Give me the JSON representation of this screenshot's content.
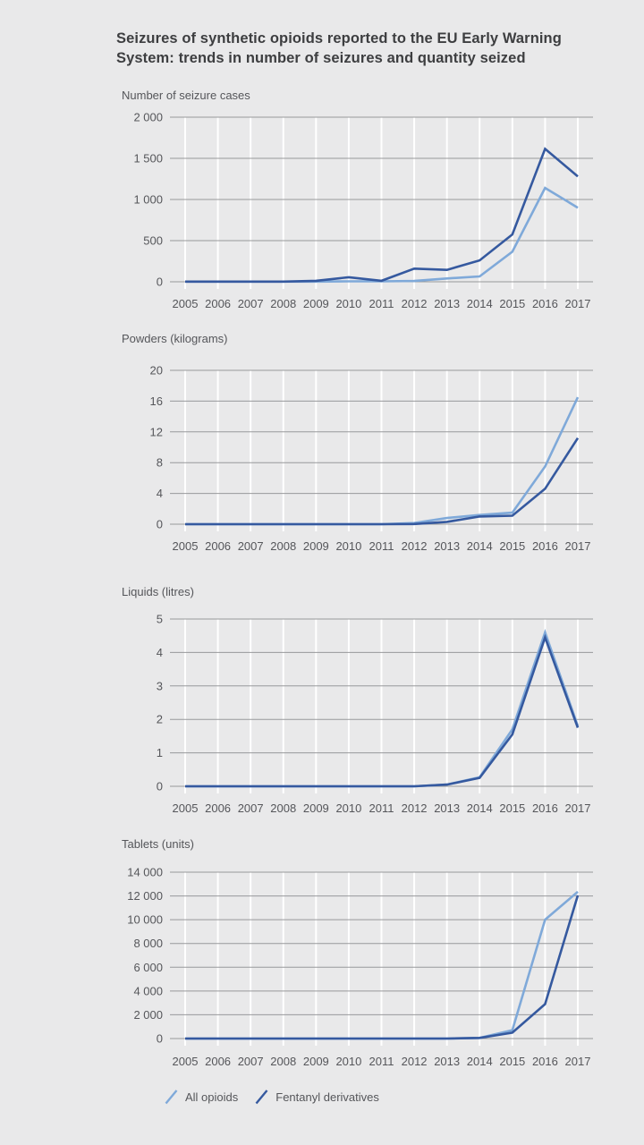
{
  "page": {
    "title": "Seizures of synthetic opioids reported to the EU Early Warning\nSystem: trends in number of seizures and quantity seized",
    "background": "#e9e9ea"
  },
  "colors": {
    "all_opioids": "#7fa9d9",
    "fentanyl": "#35599f",
    "gridline": "#98999b",
    "vertical_gridline": "#ffffff",
    "axis_text": "#55565a",
    "title_text": "#3d3e40"
  },
  "legend": {
    "items": [
      {
        "label": "All opioids",
        "series": "all_opioids"
      },
      {
        "label": "Fentanyl derivatives",
        "series": "fentanyl"
      }
    ]
  },
  "chart_data": [
    {
      "type": "line",
      "title": "Number of seizure cases",
      "x": [
        2005,
        2006,
        2007,
        2008,
        2009,
        2010,
        2011,
        2012,
        2013,
        2014,
        2015,
        2016,
        2017
      ],
      "ylim": [
        0,
        2000
      ],
      "grid": true,
      "yticks": [
        {
          "value": 2000,
          "label": "2 000"
        },
        {
          "value": 1500,
          "label": "1 500"
        },
        {
          "value": 1000,
          "label": "1 000"
        },
        {
          "value": 500,
          "label": "500"
        },
        {
          "value": 0,
          "label": "0"
        }
      ],
      "series": [
        {
          "name": "All opioids",
          "color": "all_opioids",
          "values": [
            2,
            2,
            2,
            2,
            2,
            5,
            5,
            10,
            40,
            65,
            365,
            1140,
            900
          ]
        },
        {
          "name": "Fentanyl derivatives",
          "color": "fentanyl",
          "values": [
            2,
            2,
            2,
            2,
            12,
            55,
            12,
            160,
            145,
            260,
            575,
            1615,
            1280
          ]
        }
      ]
    },
    {
      "type": "line",
      "title": "Powders (kilograms)",
      "x": [
        2005,
        2006,
        2007,
        2008,
        2009,
        2010,
        2011,
        2012,
        2013,
        2014,
        2015,
        2016,
        2017
      ],
      "ylim": [
        0,
        20
      ],
      "grid": true,
      "yticks": [
        {
          "value": 20,
          "label": "20"
        },
        {
          "value": 16,
          "label": "16"
        },
        {
          "value": 12,
          "label": "12"
        },
        {
          "value": 8,
          "label": "8"
        },
        {
          "value": 4,
          "label": "4"
        },
        {
          "value": 0,
          "label": "0"
        }
      ],
      "series": [
        {
          "name": "All opioids",
          "color": "all_opioids",
          "values": [
            0,
            0,
            0,
            0,
            0,
            0,
            0,
            0.15,
            0.8,
            1.2,
            1.5,
            7.5,
            16.5
          ]
        },
        {
          "name": "Fentanyl derivatives",
          "color": "fentanyl",
          "values": [
            0,
            0,
            0,
            0,
            0,
            0,
            0,
            0.02,
            0.3,
            1.0,
            1.1,
            4.6,
            11.2
          ]
        }
      ]
    },
    {
      "type": "line",
      "title": "Liquids (litres)",
      "x": [
        2005,
        2006,
        2007,
        2008,
        2009,
        2010,
        2011,
        2012,
        2013,
        2014,
        2015,
        2016,
        2017
      ],
      "ylim": [
        0,
        5
      ],
      "grid": true,
      "yticks": [
        {
          "value": 5,
          "label": "5"
        },
        {
          "value": 4,
          "label": "4"
        },
        {
          "value": 3,
          "label": "3"
        },
        {
          "value": 2,
          "label": "2"
        },
        {
          "value": 1,
          "label": "1"
        },
        {
          "value": 0,
          "label": "0"
        }
      ],
      "series": [
        {
          "name": "All opioids",
          "color": "all_opioids",
          "values": [
            0,
            0,
            0,
            0,
            0,
            0,
            0,
            0,
            0.05,
            0.27,
            1.7,
            4.6,
            1.8
          ]
        },
        {
          "name": "Fentanyl derivatives",
          "color": "fentanyl",
          "values": [
            0,
            0,
            0,
            0,
            0,
            0,
            0,
            0,
            0.05,
            0.25,
            1.55,
            4.45,
            1.75
          ]
        }
      ]
    },
    {
      "type": "line",
      "title": "Tablets (units)",
      "x": [
        2005,
        2006,
        2007,
        2008,
        2009,
        2010,
        2011,
        2012,
        2013,
        2014,
        2015,
        2016,
        2017
      ],
      "ylim": [
        0,
        14000
      ],
      "grid": true,
      "yticks": [
        {
          "value": 14000,
          "label": "14 000"
        },
        {
          "value": 12000,
          "label": "12 000"
        },
        {
          "value": 10000,
          "label": "10 000"
        },
        {
          "value": 8000,
          "label": "8 000"
        },
        {
          "value": 6000,
          "label": "6 000"
        },
        {
          "value": 4000,
          "label": "4 000"
        },
        {
          "value": 2000,
          "label": "2 000"
        },
        {
          "value": 0,
          "label": "0"
        }
      ],
      "series": [
        {
          "name": "All opioids",
          "color": "all_opioids",
          "values": [
            0,
            0,
            0,
            0,
            0,
            0,
            0,
            0,
            0,
            50,
            700,
            10000,
            12350
          ]
        },
        {
          "name": "Fentanyl derivatives",
          "color": "fentanyl",
          "values": [
            0,
            0,
            0,
            0,
            0,
            0,
            0,
            0,
            0,
            50,
            500,
            2900,
            12050
          ]
        }
      ]
    }
  ]
}
